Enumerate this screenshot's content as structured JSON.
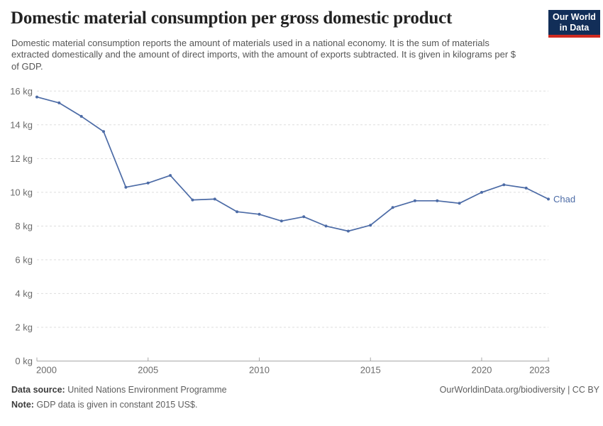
{
  "header": {
    "title": "Domestic material consumption per gross domestic product",
    "subtitle": "Domestic material consumption reports the amount of materials used in a national economy. It is the sum of materials extracted domestically and the amount of direct imports, with the amount of exports subtracted. It is given in kilograms per $ of GDP.",
    "logo": {
      "line1": "Our World",
      "line2": "in Data"
    }
  },
  "chart_data": {
    "type": "line",
    "title": "Domestic material consumption per gross domestic product",
    "x": [
      2000,
      2001,
      2002,
      2003,
      2004,
      2005,
      2006,
      2007,
      2008,
      2009,
      2010,
      2011,
      2012,
      2013,
      2014,
      2015,
      2016,
      2017,
      2018,
      2019,
      2020,
      2021,
      2022,
      2023
    ],
    "series": [
      {
        "name": "Chad",
        "color": "#4C6BA6",
        "values": [
          15.65,
          15.3,
          14.5,
          13.6,
          10.3,
          10.55,
          11.0,
          9.55,
          9.6,
          8.85,
          8.7,
          8.3,
          8.55,
          8.0,
          7.7,
          8.05,
          9.1,
          9.5,
          9.5,
          9.35,
          10.0,
          10.45,
          10.25,
          9.6
        ]
      }
    ],
    "xlim": [
      2000,
      2023
    ],
    "ylim": [
      0,
      16
    ],
    "yticks": [
      0,
      2,
      4,
      6,
      8,
      10,
      12,
      14,
      16
    ],
    "ytick_suffix": " kg",
    "xticks": [
      2000,
      2005,
      2010,
      2015,
      2020,
      2023
    ],
    "grid": true,
    "legend": "line-end-label"
  },
  "theme": {
    "line_color": "#4C6BA6",
    "grid_color": "#DDDDDD",
    "axis_color": "#A8A8A8",
    "tick_label_color": "#6B6B6B",
    "title_color": "#222222",
    "subtitle_color": "#555555",
    "footer_label_color": "#3C3C3C",
    "footer_text_color": "#5E5E5E",
    "logo_bg": "#122E58",
    "logo_accent": "#D02A20",
    "logo_text": "#FFFFFF"
  },
  "footer": {
    "data_source_label": "Data source:",
    "data_source_value": "United Nations Environment Programme",
    "link": "OurWorldinData.org/biodiversity | CC BY",
    "note_label": "Note:",
    "note_value": "GDP data is given in constant 2015 US$."
  }
}
